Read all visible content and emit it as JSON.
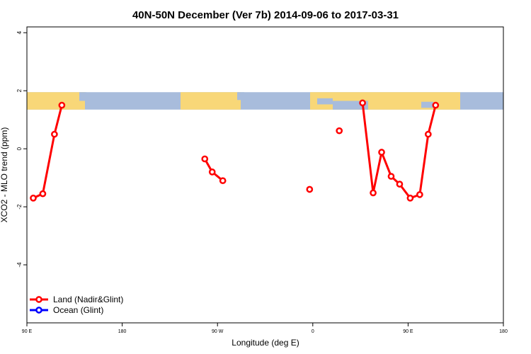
{
  "chart_data": {
    "type": "line",
    "title": "40N-50N December (Ver 7b)   2014-09-06 to 2017-03-31",
    "xlabel": "Longitude (deg E)",
    "ylabel": "XCO2 - MLO trend (ppm)",
    "xlim": [
      90,
      540
    ],
    "ylim": [
      -6,
      4.2
    ],
    "x_ticks": [
      {
        "value": 90,
        "label": "90 E"
      },
      {
        "value": 180,
        "label": "180"
      },
      {
        "value": 270,
        "label": "90 W"
      },
      {
        "value": 360,
        "label": "0"
      },
      {
        "value": 450,
        "label": "90 E"
      },
      {
        "value": 540,
        "label": "180"
      }
    ],
    "y_ticks": [
      {
        "value": 4,
        "label": "4"
      },
      {
        "value": 2,
        "label": "2"
      },
      {
        "value": 0,
        "label": "0"
      },
      {
        "value": -2,
        "label": "-2"
      },
      {
        "value": -4,
        "label": "-4"
      }
    ],
    "map_band": {
      "y_range": [
        1.35,
        1.95
      ],
      "land_color": "#f8d778",
      "ocean_color": "#a8bcdc"
    },
    "legend_position": "bottom-left",
    "series": [
      {
        "name": "Land (Nadir&Glint)",
        "color": "#ff0000",
        "segments": [
          [
            [
              96,
              -1.7
            ],
            [
              105,
              -1.55
            ],
            [
              116,
              0.5
            ],
            [
              123,
              1.5
            ]
          ],
          [
            [
              258,
              -0.35
            ],
            [
              265,
              -0.8
            ],
            [
              275,
              -1.1
            ]
          ],
          [
            [
              357,
              -1.4
            ]
          ],
          [
            [
              385,
              0.62
            ]
          ],
          [
            [
              407,
              1.58
            ],
            [
              417,
              -1.52
            ],
            [
              425,
              -0.12
            ],
            [
              434,
              -0.95
            ],
            [
              442,
              -1.22
            ],
            [
              452,
              -1.7
            ],
            [
              461,
              -1.58
            ],
            [
              469,
              0.5
            ],
            [
              476,
              1.5
            ]
          ]
        ]
      },
      {
        "name": "Ocean (Glint)",
        "color": "#0000ff",
        "segments": []
      }
    ]
  }
}
